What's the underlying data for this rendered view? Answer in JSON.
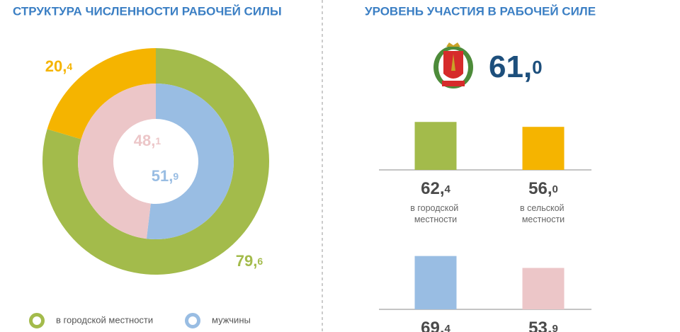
{
  "chart_data": [
    {
      "type": "donut",
      "title": "СТРУКТУРА ЧИСЛЕННОСТИ РАБОЧЕЙ СИЛЫ",
      "rings": [
        {
          "categories": [
            "в городской местности",
            null
          ],
          "values": [
            79.6,
            20.4
          ],
          "value_labels": [
            "79,6",
            "20,4"
          ],
          "colors": [
            "#a3bb4b",
            "#f5b400"
          ]
        },
        {
          "categories": [
            "мужчины",
            null
          ],
          "values": [
            51.9,
            48.1
          ],
          "value_labels": [
            "51,9",
            "48,1"
          ],
          "colors": [
            "#99bde3",
            "#ecc6c8"
          ]
        }
      ]
    },
    {
      "type": "bar",
      "title": "УРОВЕНЬ УЧАСТИЯ В РАБОЧЕЙ СИЛЕ",
      "headline": 61.0,
      "headline_label": "61,0",
      "categories": [
        "в городской местности",
        "в сельской местности"
      ],
      "values": [
        62.4,
        56.0
      ],
      "value_labels": [
        "62,4",
        "56,0"
      ],
      "colors": [
        "#a3bb4b",
        "#f5b400"
      ],
      "ylim": [
        0,
        70
      ]
    },
    {
      "type": "bar",
      "categories": [
        null,
        null
      ],
      "values": [
        69.4,
        53.9
      ],
      "value_labels": [
        "69,4",
        "53,9"
      ],
      "colors": [
        "#99bde3",
        "#ecc6c8"
      ],
      "ylim": [
        0,
        70
      ]
    }
  ]
}
